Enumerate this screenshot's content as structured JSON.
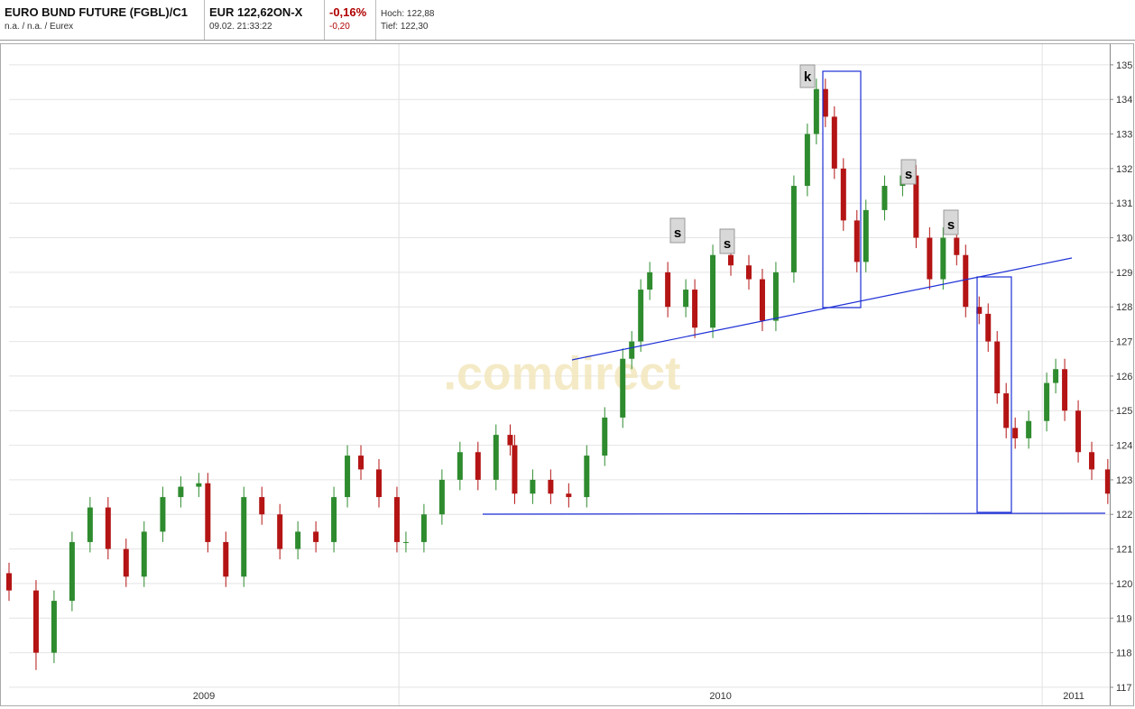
{
  "header": {
    "name": "EURO BUND FUTURE (FGBL)/C1",
    "sub": "n.a. / n.a. / Eurex",
    "price": "EUR 122,62ON-X",
    "time": "09.02. 21:33:22",
    "change_pct": "-0,16%",
    "change_abs": "-0,20",
    "high": "Hoch: 122,88",
    "low": "Tief: 122,30"
  },
  "chart_data": {
    "type": "candlestick",
    "watermark": ".comdirect",
    "annotations": [
      "k",
      "s",
      "s",
      "s",
      "s"
    ],
    "x": [
      2009.394,
      2009.436,
      2009.464,
      2009.492,
      2009.52,
      2009.548,
      2009.576,
      2009.604,
      2009.633,
      2009.661,
      2009.689,
      2009.703,
      2009.731,
      2009.759,
      2009.787,
      2009.815,
      2009.843,
      2009.871,
      2009.899,
      2009.92,
      2009.941,
      2009.969,
      2009.997,
      2010.011,
      2010.039,
      2010.067,
      2010.095,
      2010.123,
      2010.151,
      2010.173,
      2010.18,
      2010.208,
      2010.236,
      2010.264,
      2010.292,
      2010.32,
      2010.348,
      2010.362,
      2010.376,
      2010.39,
      2010.418,
      2010.446,
      2010.46,
      2010.488,
      2010.516,
      2010.544,
      2010.565,
      2010.586,
      2010.614,
      2010.635,
      2010.649,
      2010.663,
      2010.677,
      2010.691,
      2010.712,
      2010.726,
      2010.755,
      2010.783,
      2010.804,
      2010.825,
      2010.846,
      2010.867,
      2010.881,
      2010.902,
      2010.916,
      2010.93,
      2010.944,
      2010.958,
      2010.979,
      2011.007,
      2011.021,
      2011.035,
      2011.056,
      2011.077,
      2011.102
    ],
    "open": [
      120.3,
      119.8,
      118.0,
      119.5,
      121.2,
      122.2,
      121.0,
      120.2,
      121.5,
      122.5,
      122.8,
      122.9,
      121.2,
      120.2,
      122.5,
      122.0,
      121.0,
      121.5,
      121.2,
      122.5,
      123.7,
      123.3,
      122.5,
      121.2,
      121.2,
      122.0,
      123.0,
      123.8,
      123.0,
      124.3,
      124.0,
      122.6,
      123.0,
      122.6,
      122.5,
      123.7,
      124.8,
      126.5,
      127.0,
      128.5,
      129.0,
      128.0,
      128.5,
      127.4,
      129.5,
      129.2,
      128.8,
      127.6,
      129.0,
      131.5,
      133.0,
      134.3,
      133.5,
      132.0,
      130.5,
      129.3,
      130.8,
      131.5,
      131.8,
      130.0,
      128.8,
      130.0,
      129.5,
      128.0,
      127.8,
      127.0,
      125.5,
      124.5,
      124.2,
      124.7,
      125.8,
      126.2,
      125.0,
      123.8,
      123.3
    ],
    "high": [
      120.6,
      120.1,
      119.8,
      121.5,
      122.5,
      122.5,
      121.3,
      121.8,
      122.8,
      123.1,
      123.2,
      123.2,
      121.5,
      122.8,
      122.8,
      122.3,
      121.8,
      121.8,
      122.8,
      124.0,
      124.0,
      123.6,
      122.8,
      121.5,
      122.3,
      123.3,
      124.1,
      124.1,
      124.6,
      124.6,
      124.3,
      123.3,
      123.3,
      122.9,
      124.0,
      125.1,
      126.8,
      127.3,
      128.8,
      129.3,
      129.3,
      128.8,
      128.8,
      129.8,
      129.8,
      129.5,
      129.1,
      129.3,
      131.8,
      133.3,
      134.6,
      134.6,
      133.8,
      132.3,
      130.8,
      131.1,
      131.8,
      132.1,
      132.1,
      130.3,
      130.3,
      130.3,
      129.8,
      128.3,
      128.1,
      127.3,
      125.8,
      124.8,
      125.0,
      126.1,
      126.5,
      126.5,
      125.3,
      124.1,
      123.6
    ],
    "low": [
      119.5,
      117.5,
      117.7,
      119.2,
      120.9,
      120.7,
      119.9,
      119.9,
      121.2,
      122.2,
      122.5,
      120.9,
      119.9,
      119.9,
      121.7,
      120.7,
      120.7,
      120.9,
      120.9,
      122.2,
      123.0,
      122.2,
      120.9,
      120.9,
      120.9,
      121.7,
      122.7,
      122.7,
      122.7,
      123.7,
      122.3,
      122.3,
      122.3,
      122.2,
      122.2,
      123.4,
      124.5,
      126.2,
      126.7,
      128.2,
      127.7,
      127.7,
      127.1,
      127.1,
      128.9,
      128.5,
      127.3,
      127.3,
      128.7,
      131.2,
      132.7,
      133.2,
      131.7,
      130.2,
      129.0,
      129.0,
      130.5,
      131.2,
      129.7,
      128.5,
      128.5,
      129.2,
      127.7,
      127.5,
      126.7,
      125.2,
      124.2,
      123.9,
      123.9,
      124.4,
      125.5,
      124.7,
      123.5,
      123.0,
      122.3
    ],
    "close": [
      119.8,
      118.0,
      119.5,
      121.2,
      122.2,
      121.0,
      120.2,
      121.5,
      122.5,
      122.8,
      122.9,
      121.2,
      120.2,
      122.5,
      122.0,
      121.0,
      121.5,
      121.2,
      122.5,
      123.7,
      123.3,
      122.5,
      121.2,
      121.2,
      122.0,
      123.0,
      123.8,
      123.0,
      124.3,
      124.0,
      122.6,
      123.0,
      122.6,
      122.5,
      123.7,
      124.8,
      126.5,
      127.0,
      128.5,
      129.0,
      128.0,
      128.5,
      127.4,
      129.5,
      129.2,
      128.8,
      127.6,
      129.0,
      131.5,
      133.0,
      134.3,
      133.5,
      132.0,
      130.5,
      129.3,
      130.8,
      131.5,
      131.8,
      130.0,
      128.8,
      130.0,
      129.5,
      128.0,
      127.8,
      127.0,
      125.5,
      124.5,
      124.2,
      124.7,
      125.8,
      126.2,
      125.0,
      123.8,
      123.3,
      122.6
    ],
    "up_color": "#2e8b2e",
    "down_color": "#b41414",
    "xlim": [
      2009.394,
      2011.105
    ],
    "ylim": [
      116.92,
      135.44
    ],
    "yticks": [
      117,
      118,
      119,
      120,
      121,
      122,
      123,
      124,
      125,
      126,
      127,
      128,
      129,
      130,
      131,
      132,
      133,
      134,
      135
    ],
    "xticks": [
      {
        "value": 2009.697,
        "label": "2009"
      },
      {
        "value": 2010.5,
        "label": "2010"
      },
      {
        "value": 2011.049,
        "label": "2011"
      }
    ],
    "xgrid": [
      2010,
      2011
    ],
    "grid": true
  }
}
